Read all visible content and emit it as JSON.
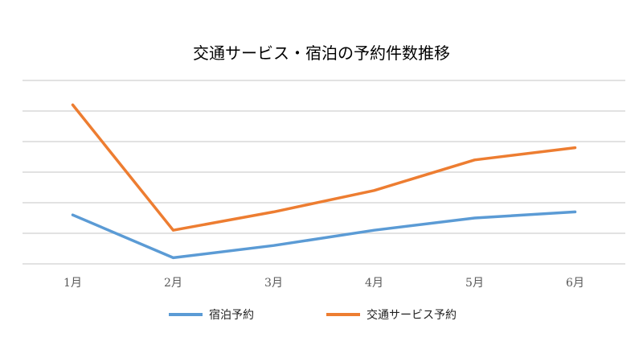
{
  "chart_data": {
    "type": "line",
    "title": "交通サービス・宿泊の予約件数推移",
    "xlabel": "",
    "ylabel": "",
    "categories": [
      "1月",
      "2月",
      "3月",
      "4月",
      "5月",
      "6月"
    ],
    "ylim": [
      0,
      6
    ],
    "grid": true,
    "legend_position": "bottom",
    "series": [
      {
        "name": "宿泊予約",
        "color": "#5B9BD5",
        "values": [
          1.6,
          0.2,
          0.6,
          1.1,
          1.5,
          1.7
        ]
      },
      {
        "name": "交通サービス予約",
        "color": "#ED7D31",
        "values": [
          5.2,
          1.1,
          1.7,
          2.4,
          3.4,
          3.8
        ]
      }
    ]
  }
}
